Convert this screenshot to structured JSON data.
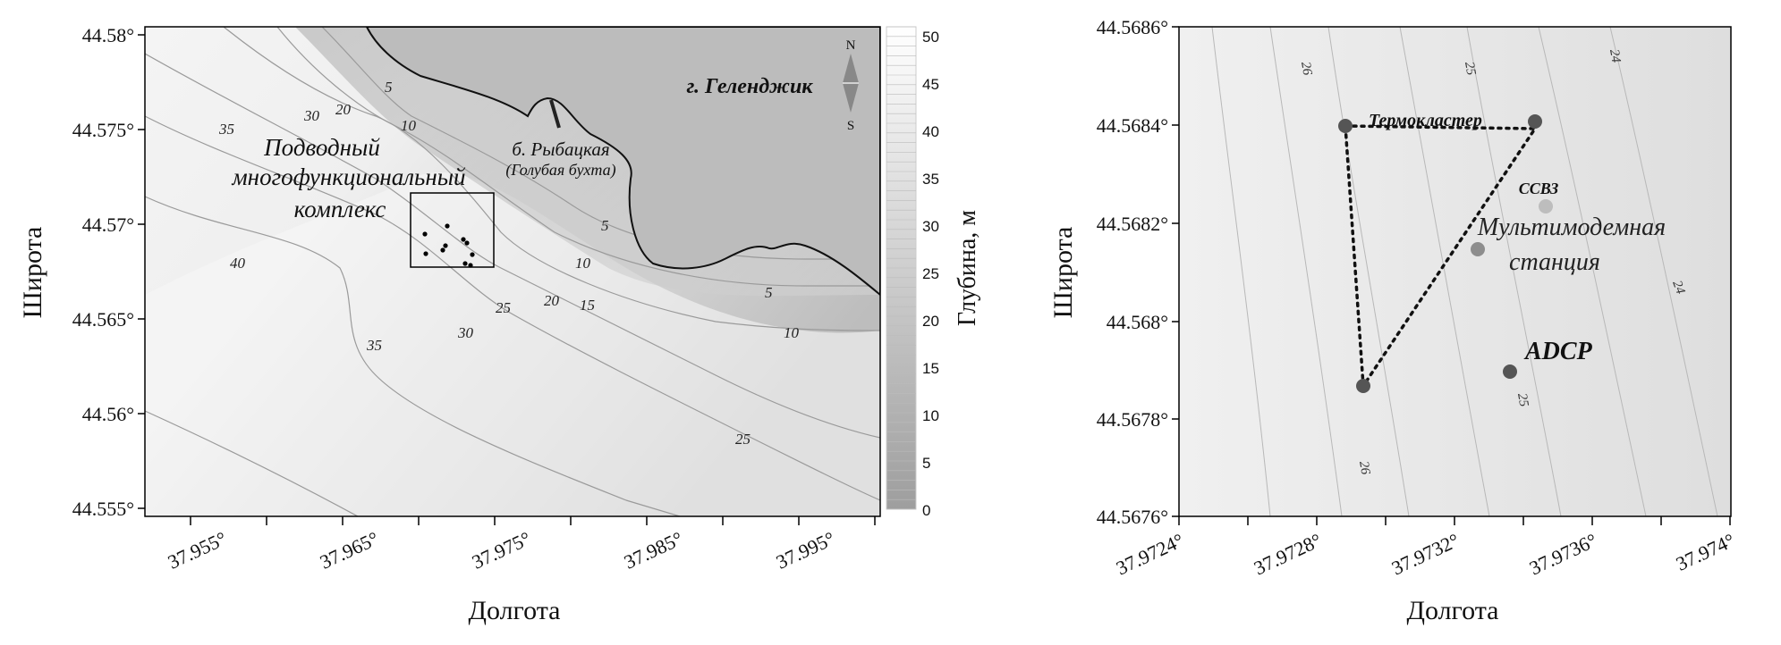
{
  "left_map": {
    "y_axis_label": "Широта",
    "x_axis_label": "Долгота",
    "y_ticks": [
      "44.58°",
      "44.575°",
      "44.57°",
      "44.565°",
      "44.56°",
      "44.555°"
    ],
    "x_ticks": [
      "37.955°",
      "37.965°",
      "37.975°",
      "37.985°",
      "37.995°"
    ],
    "city_label": "г. Геленджик",
    "bay_label": "б. Рыбацкая",
    "bay_sublabel": "(Голубая бухта)",
    "complex_label": [
      "Подводный",
      "многофункциональный",
      "комплекс"
    ],
    "compass": {
      "north": "N",
      "south": "S"
    },
    "contour_labels": [
      "5",
      "10",
      "20",
      "30",
      "35",
      "40",
      "35",
      "30",
      "25",
      "5",
      "10",
      "20",
      "15",
      "25",
      "5",
      "10"
    ],
    "colorbar": {
      "title": "Глубина, м",
      "ticks": [
        "50",
        "45",
        "40",
        "35",
        "30",
        "25",
        "20",
        "15",
        "10",
        "5",
        "0"
      ]
    }
  },
  "right_map": {
    "y_axis_label": "Широта",
    "x_axis_label": "Долгота",
    "y_ticks": [
      "44.5686°",
      "44.5684°",
      "44.5682°",
      "44.568°",
      "44.5678°",
      "44.5676°"
    ],
    "x_ticks": [
      "37.9724°",
      "37.9728°",
      "37.9732°",
      "37.9736°",
      "37.974°"
    ],
    "labels": {
      "thermocluster": "Термокластер",
      "ssvz": "ССВЗ",
      "station_line1": "Мультимодемная",
      "station_line2": "станция",
      "adcp": "ADCP"
    },
    "contour_labels": [
      "26",
      "25",
      "24",
      "24",
      "25",
      "26"
    ]
  }
}
